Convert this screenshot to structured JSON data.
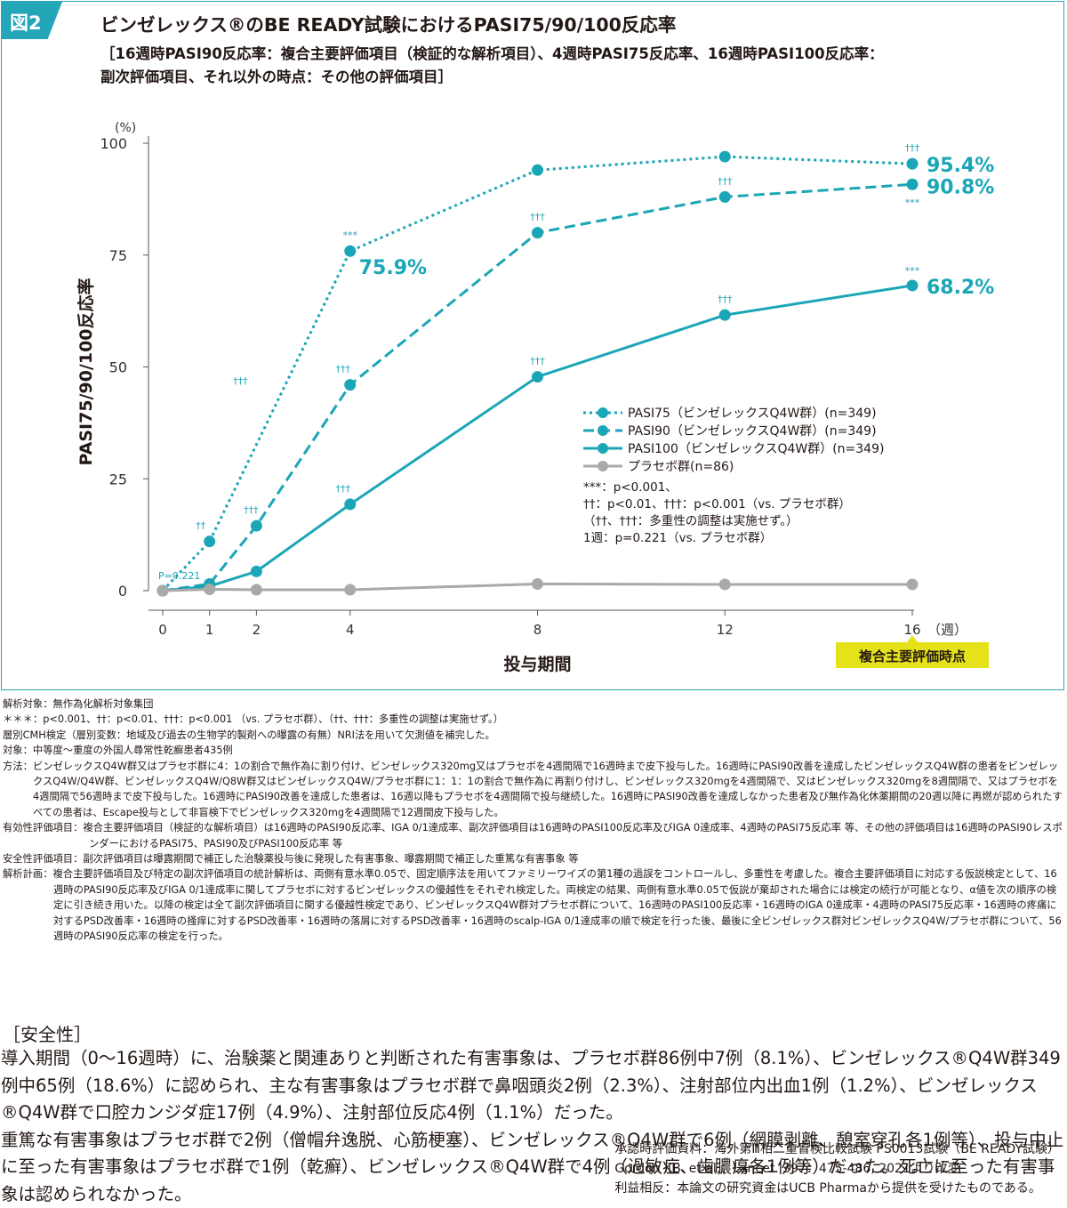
{
  "figure": {
    "tag": "図2",
    "title": "ビンゼレックス®のBE READY試験におけるPASI75/90/100反応率",
    "subtitle_line1": "［16週時PASI90反応率：複合主要評価項目（検証的な解析項目）、4週時PASI75反応率、16週時PASI100反応率：",
    "subtitle_line2": "副次評価項目、それ以外の時点：その他の評価項目］"
  },
  "chart_data": {
    "type": "line",
    "ylabel": "PASI75/90/100反応率",
    "yunit": "(%)",
    "xlabel": "投与期間",
    "xunit": "（週）",
    "ylim": [
      0,
      100
    ],
    "yticks": [
      0,
      25,
      50,
      75,
      100
    ],
    "xticks": [
      0,
      1,
      2,
      4,
      8,
      12,
      16
    ],
    "primary_endpoint_label": "複合主要評価時点",
    "primary_endpoint_week": 16,
    "colors": {
      "active": "#1aa6b7",
      "placebo": "#a9a9a9",
      "highlight": "#e6e219"
    },
    "series": [
      {
        "name": "PASI75（ビンゼレックスQ4W群）(n=349)",
        "style": "dotted",
        "x": [
          0,
          1,
          4,
          8,
          12,
          16
        ],
        "y": [
          0,
          11.0,
          75.9,
          94.0,
          97.0,
          95.4
        ],
        "marks": [
          "",
          "††",
          "***",
          "",
          "",
          "†††"
        ],
        "end_label": "95.4%",
        "mid_label": "75.9%"
      },
      {
        "name": "PASI90（ビンゼレックスQ4W群）(n=349)",
        "style": "dashed",
        "x": [
          0,
          1,
          2,
          4,
          8,
          12,
          16
        ],
        "y": [
          0,
          1.5,
          14.5,
          46.0,
          80.0,
          88.0,
          90.8
        ],
        "marks": [
          "",
          "",
          "†††",
          "†††",
          "†††",
          "†††",
          "***"
        ],
        "end_label": "90.8%"
      },
      {
        "name": "PASI100（ビンゼレックスQ4W群）(n=349)",
        "style": "solid",
        "x": [
          0,
          1,
          2,
          4,
          8,
          12,
          16
        ],
        "y": [
          0,
          1.0,
          4.3,
          19.3,
          47.8,
          61.6,
          68.2
        ],
        "marks": [
          "",
          "",
          "",
          "†††",
          "†††",
          "†††",
          "***"
        ],
        "end_label": "68.2%"
      },
      {
        "name": "プラセボ群(n=86)",
        "style": "solid-gray",
        "x": [
          0,
          1,
          2,
          4,
          8,
          12,
          16
        ],
        "y": [
          0,
          0.3,
          0.2,
          0.2,
          1.5,
          1.4,
          1.4
        ],
        "marks": [],
        "end_label": ""
      }
    ],
    "series_marks_high": [
      "",
      "",
      "†††",
      "",
      "",
      "",
      ""
    ],
    "p_annotation": "P=0.221",
    "legend_notes": [
      "***：p<0.001、",
      "††：p<0.01、†††：p<0.001（vs. プラセボ群）",
      "（††、†††：多重性の調整は実施せず。）",
      "1週：p=0.221（vs. プラセボ群）"
    ]
  },
  "notes": [
    "解析対象：無作為化解析対象集団",
    "＊＊＊：p<0.001、††：p<0.01、†††：p<0.001 （vs. プラセボ群）、（††、†††：多重性の調整は実施せず。）",
    "層別CMH検定（層別変数：地域及び過去の生物学的製剤への曝露の有無）NRI法を用いて欠測値を補完した。",
    "対象：中等度～重度の外国人尋常性乾癬患者435例",
    "方法：ビンゼレックスQ4W群又はプラセボ群に4：1の割合で無作為に割り付け、ビンゼレックス320mg又はプラセボを4週間隔で16週時まで皮下投与した。16週時にPASI90改善を達成したビンゼレックスQ4W群の患者をビンゼレックスQ4W/Q4W群、ビンゼレックスQ4W/Q8W群又はビンゼレックスQ4W/プラセボ群に1：1：1の割合で無作為に再割り付けし、ビンゼレックス320mgを4週間隔で、又はビンゼレックス320mgを8週間隔で、又はプラセボを4週間隔で56週時まで皮下投与した。16週時にPASI90改善を達成した患者は、16週以降もプラセボを4週間隔で投与継続した。16週時にPASI90改善を達成しなかった患者及び無作為化休薬期間の20週以降に再燃が認められたすべての患者は、Escape投与として非盲検下でビンゼレックス320mgを4週間隔で12週間皮下投与した。",
    "有効性評価項目：複合主要評価項目（検証的な解析項目）は16週時のPASI90反応率、IGA 0/1達成率、副次評価項目は16週時のPASI100反応率及びIGA 0達成率、4週時のPASI75反応率 等、その他の評価項目は16週時のPASI90レスポンダーにおけるPASI75、PASI90及びPASI100反応率 等",
    "安全性評価項目：副次評価項目は曝露期間で補正した治験薬投与後に発現した有害事象、曝露期間で補正した重篤な有害事象 等",
    "解析計画：複合主要評価項目及び特定の副次評価項目の統計解析は、両側有意水準0.05で、固定順序法を用いてファミリーワイズの第1種の過誤をコントロールし、多重性を考慮した。複合主要評価項目に対応する仮説検定として、16週時のPASI90反応率及びIGA 0/1達成率に関してプラセボに対するビンゼレックスの優越性をそれぞれ検定した。両検定の結果、両側有意水準0.05で仮説が棄却された場合には検定の続行が可能となり、α値を次の順序の検定に引き続き用いた。以降の検定は全て副次評価項目に関する優越性検定であり、ビンゼレックスQ4W群対プラセボ群について、16週時のPASI100反応率・16週時のIGA 0達成率・4週時のPASI75反応率・16週時の疼痛に対するPSD改善率・16週時の掻痒に対するPSD改善率・16週時の落屑に対するPSD改善率・16週時のscalp-IGA 0/1達成率の順で検定を行った後、最後に全ビンゼレックス群対ビンゼレックスQ4W/プラセボ群について、56週時のPASI90反応率の検定を行った。"
  ],
  "safety": {
    "heading": "［安全性］",
    "paragraph1": "導入期間（0～16週時）に、治験薬と関連ありと判断された有害事象は、プラセボ群86例中7例（8.1%）、ビンゼレックス®Q4W群349例中65例（18.6%）に認められ、主な有害事象はプラセボ群で鼻咽頭炎2例（2.3%）、注射部位内出血1例（1.2%）、ビンゼレックス®Q4W群で口腔カンジダ症17例（4.9%）、注射部位反応4例（1.1%）だった。",
    "paragraph2": "重篤な有害事象はプラセボ群で2例（僧帽弁逸脱、心筋梗塞）、ビンゼレックス®Q4W群で6例（網膜剥離、憩室穿孔各1例等）、投与中止に至った有害事象はプラセボ群で1例（乾癬）、ビンゼレックス®Q4W群で4例（過敏症、歯膿瘍各1例等）だった。死亡に至った有害事象は認められなかった。"
  },
  "references": [
    "承認時評価資料：海外第Ⅲ相二重盲検比較試験 PS0013試験（BE READY試験）",
    "Gordon KB. et al.：Lancet. 397：475-486, 2021より改変",
    "利益相反：本論文の研究資金はUCB Pharmaから提供を受けたものである。"
  ]
}
